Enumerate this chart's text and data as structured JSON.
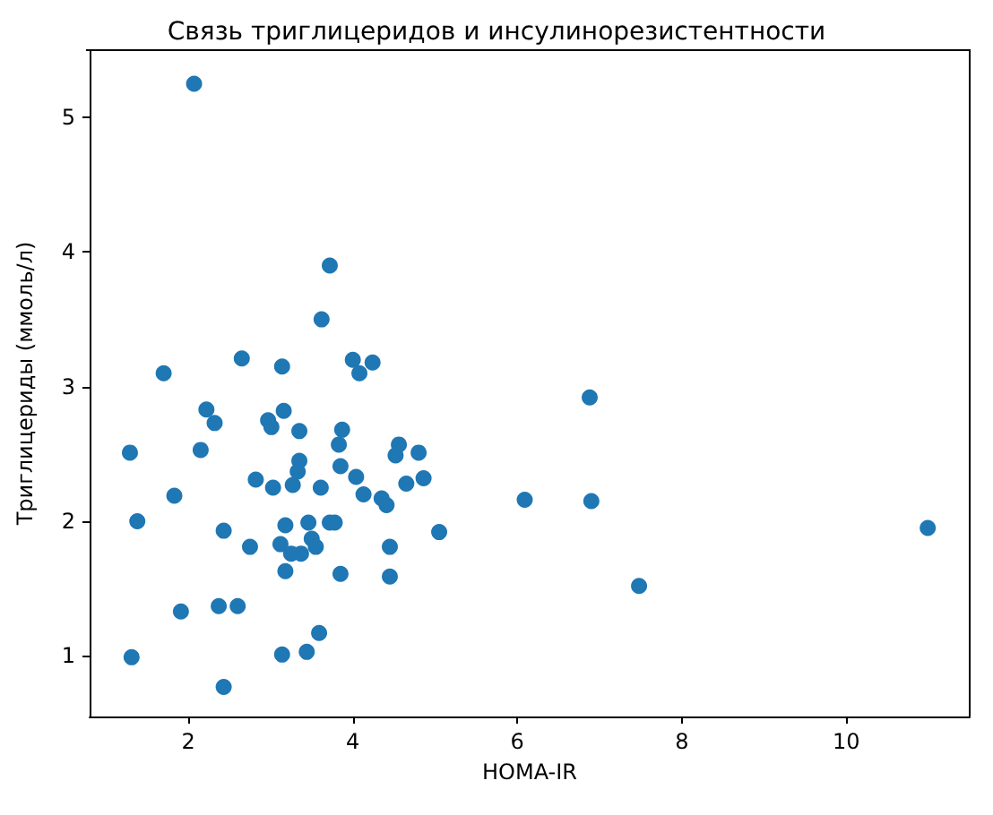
{
  "chart_data": {
    "type": "scatter",
    "title": "Связь триглицеридов и инсулинорезистентности",
    "xlabel": "HOMA-IR",
    "ylabel": "Триглицериды (ммоль/л)",
    "xlim": [
      0.8,
      11.5
    ],
    "xticks": [
      2,
      4,
      6,
      8,
      10
    ],
    "ylim": [
      0.55,
      5.5
    ],
    "yticks": [
      1,
      2,
      3,
      4,
      5
    ],
    "grid": false,
    "marker": "circle",
    "series": [
      {
        "color": "#1f77b4",
        "x": [
          2.07,
          3.72,
          3.62,
          1.7,
          2.65,
          3.14,
          4.0,
          4.08,
          4.24,
          2.22,
          2.32,
          1.29,
          2.15,
          2.97,
          3.01,
          3.16,
          3.35,
          3.35,
          3.87,
          3.83,
          1.83,
          2.82,
          3.03,
          3.27,
          3.33,
          3.61,
          3.85,
          4.04,
          4.13,
          4.35,
          4.41,
          4.52,
          4.56,
          4.8,
          4.65,
          4.86,
          1.38,
          2.43,
          2.75,
          3.12,
          3.18,
          3.46,
          3.5,
          3.55,
          3.72,
          3.78,
          3.37,
          3.25,
          3.18,
          3.85,
          4.45,
          4.45,
          5.05,
          1.91,
          2.37,
          2.6,
          1.31,
          3.14,
          3.44,
          3.59,
          2.43,
          6.88,
          6.09,
          6.9,
          7.48,
          10.99
        ],
        "values": [
          5.25,
          3.9,
          3.5,
          3.1,
          3.21,
          3.15,
          3.2,
          3.1,
          3.18,
          2.83,
          2.73,
          2.51,
          2.53,
          2.75,
          2.7,
          2.82,
          2.67,
          2.45,
          2.68,
          2.57,
          2.19,
          2.31,
          2.25,
          2.27,
          2.37,
          2.25,
          2.41,
          2.33,
          2.2,
          2.17,
          2.12,
          2.49,
          2.57,
          2.51,
          2.28,
          2.32,
          2.0,
          1.93,
          1.81,
          1.83,
          1.97,
          1.99,
          1.87,
          1.81,
          1.99,
          1.99,
          1.76,
          1.76,
          1.63,
          1.61,
          1.81,
          1.59,
          1.92,
          1.33,
          1.37,
          1.37,
          0.99,
          1.01,
          1.03,
          1.17,
          0.77,
          2.92,
          2.16,
          2.15,
          1.52,
          1.95
        ]
      }
    ]
  }
}
